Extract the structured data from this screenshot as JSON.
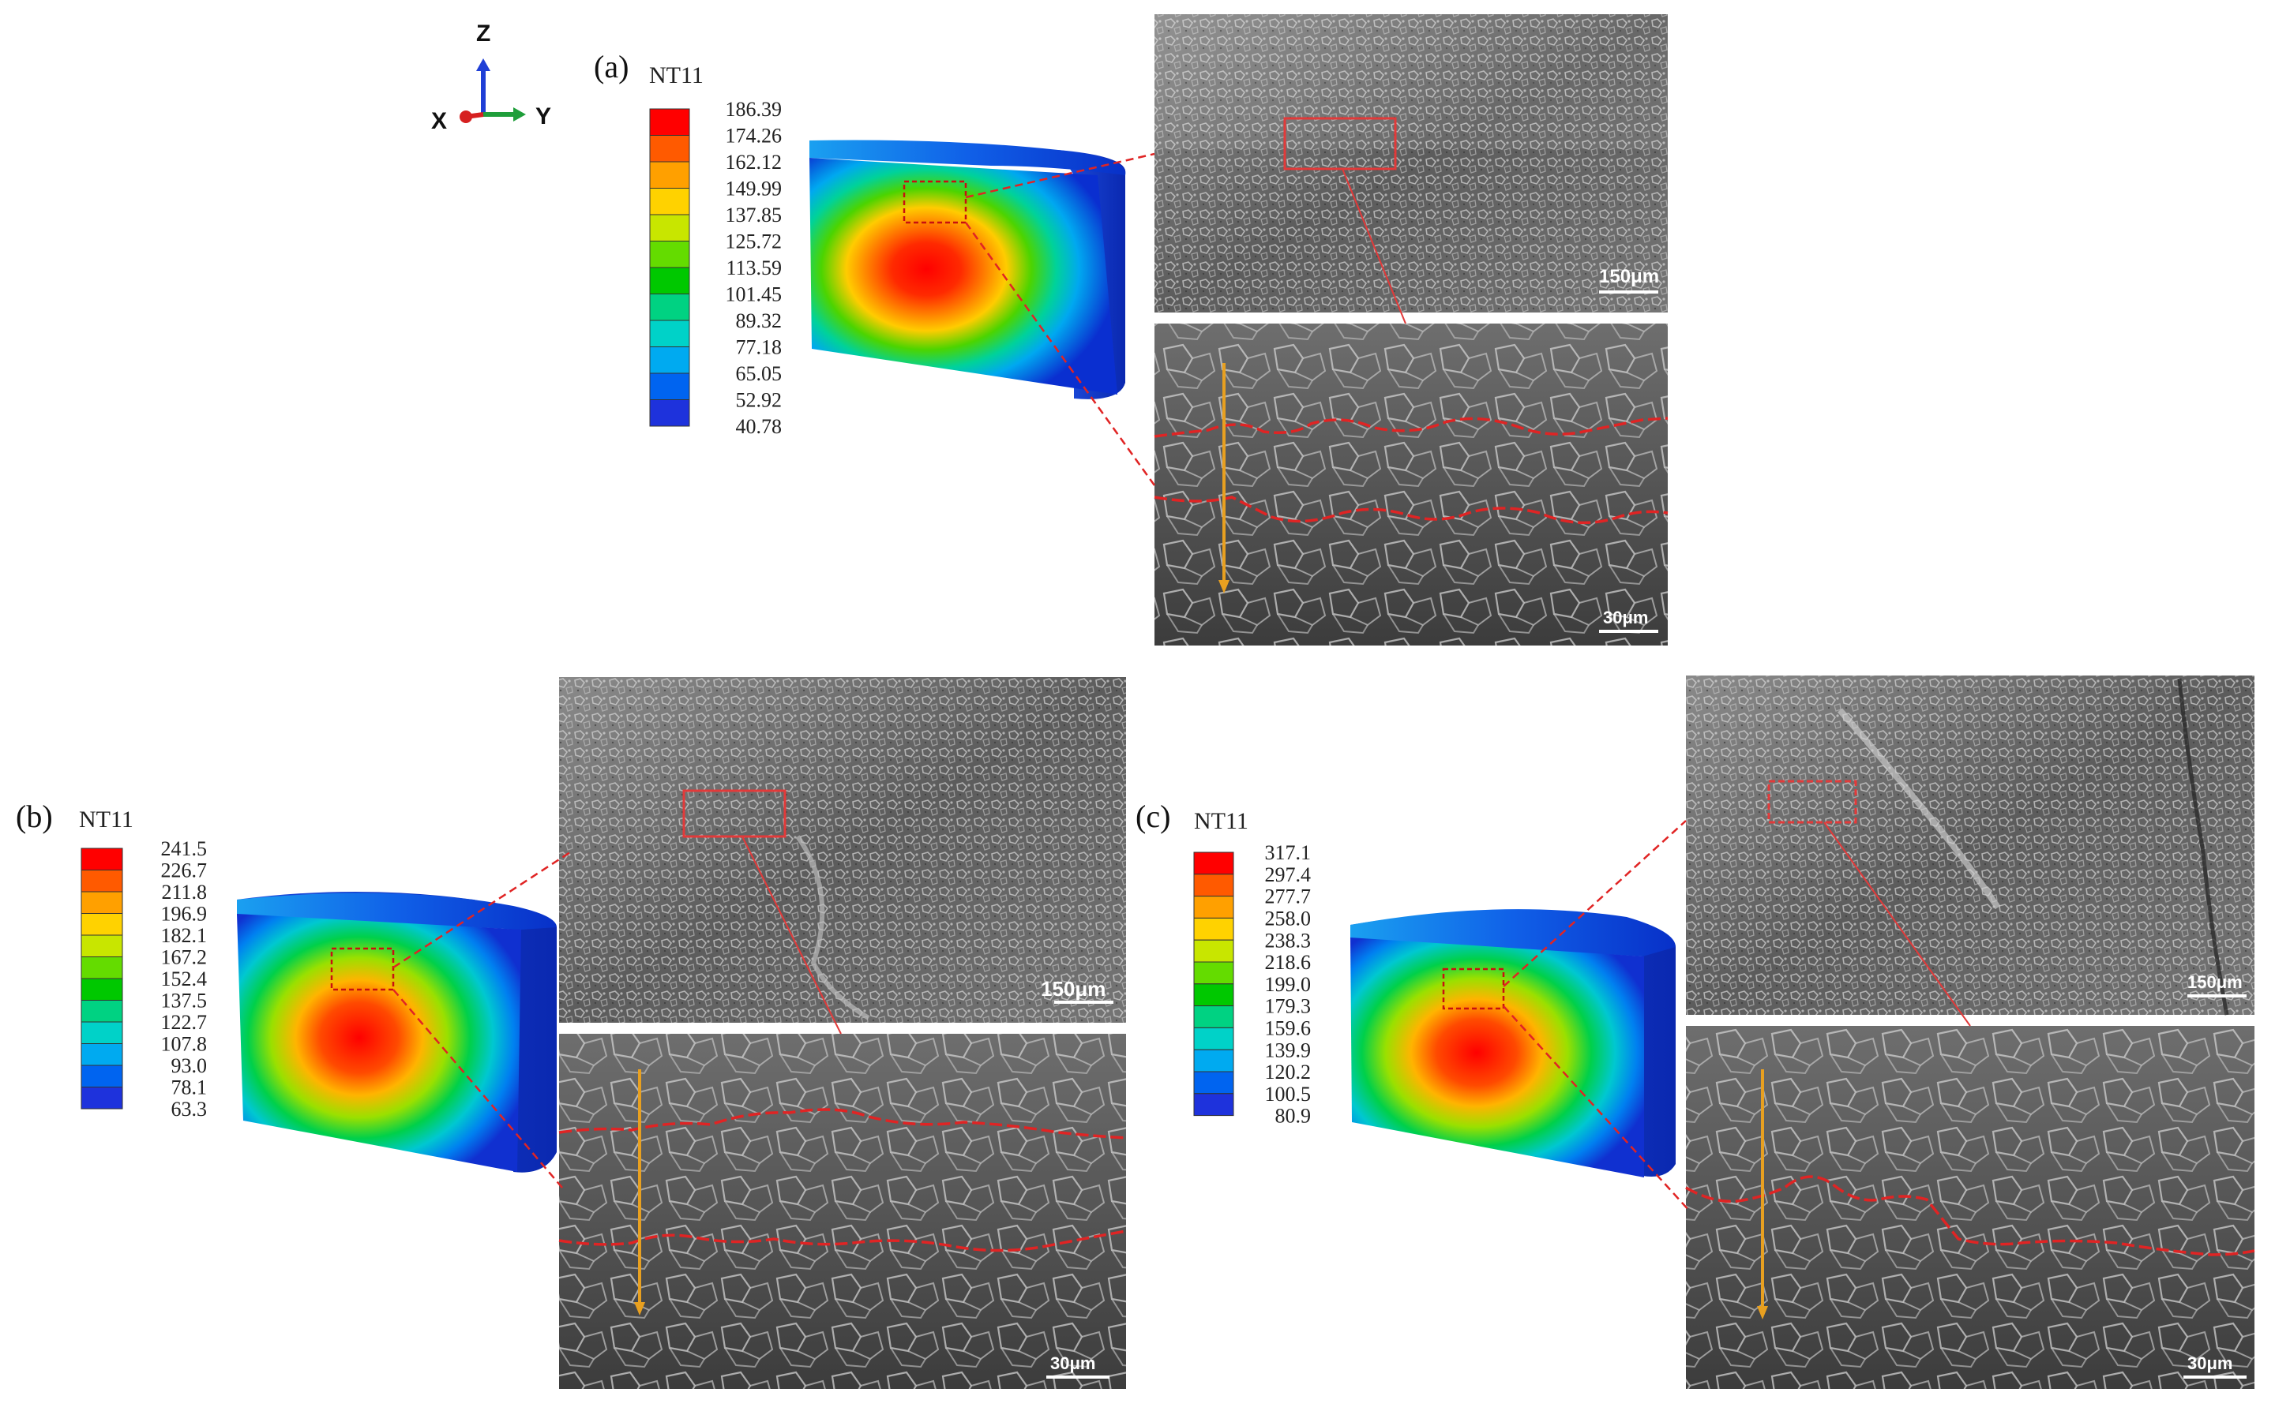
{
  "axes_triad": {
    "z": "Z",
    "x": "X",
    "y": "Y",
    "colors": {
      "z": "#1f3fd6",
      "y": "#1f9e3a",
      "x": "#d62020"
    }
  },
  "panels": [
    {
      "id": "a",
      "label": "(a)",
      "legend_title": "NT11",
      "legend_values": [
        "186.39",
        "174.26",
        "162.12",
        "149.99",
        "137.85",
        "125.72",
        "113.59",
        "101.45",
        "89.32",
        "77.18",
        "65.05",
        "52.92",
        "40.78"
      ],
      "scale_low": "150μm",
      "scale_high": "30μm"
    },
    {
      "id": "b",
      "label": "(b)",
      "legend_title": "NT11",
      "legend_values": [
        "241.5",
        "226.7",
        "211.8",
        "196.9",
        "182.1",
        "167.2",
        "152.4",
        "137.5",
        "122.7",
        "107.8",
        "93.0",
        "78.1",
        "63.3"
      ],
      "scale_low": "150μm",
      "scale_high": "30μm"
    },
    {
      "id": "c",
      "label": "(c)",
      "legend_title": "NT11",
      "legend_values": [
        "317.1",
        "297.4",
        "277.7",
        "258.0",
        "238.3",
        "218.6",
        "199.0",
        "179.3",
        "159.6",
        "139.9",
        "120.2",
        "100.5",
        "80.9"
      ],
      "scale_low": "150μm",
      "scale_high": "30μm"
    }
  ],
  "legend_colors": [
    "#ff0000",
    "#ff5a00",
    "#ffa000",
    "#ffd200",
    "#c8e600",
    "#64dc00",
    "#00c800",
    "#00d282",
    "#00d2c8",
    "#00aaf0",
    "#0064f0",
    "#1e32dc",
    "#0000ff"
  ]
}
